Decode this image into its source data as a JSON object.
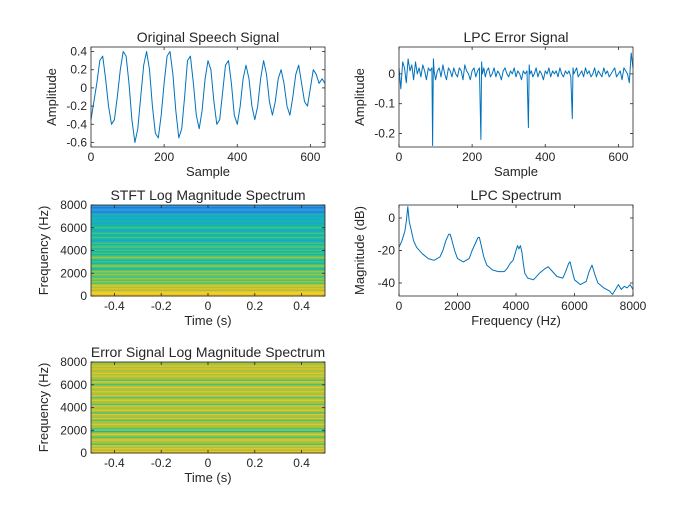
{
  "figure": {
    "background": "#ffffff",
    "axis_color": "#262626",
    "line_color": "#0072BD"
  },
  "chart_data": [
    {
      "id": "orig",
      "type": "line",
      "title": "Original Speech Signal",
      "xlabel": "Sample",
      "ylabel": "Amplitude",
      "xlim": [
        0,
        640
      ],
      "ylim": [
        -0.65,
        0.45
      ],
      "xticks": [
        0,
        200,
        400,
        600
      ],
      "xticklabels": [
        "0",
        "200",
        "400",
        "600"
      ],
      "yticks": [
        -0.6,
        -0.4,
        -0.2,
        0,
        0.2,
        0.4
      ],
      "yticklabels": [
        "-0.6",
        "-0.4",
        "-0.2",
        "0",
        "0.2",
        "0.4"
      ],
      "series": [
        {
          "x": [
            0,
            8,
            16,
            24,
            32,
            40,
            48,
            56,
            64,
            72,
            80,
            88,
            96,
            104,
            112,
            120,
            128,
            136,
            144,
            152,
            160,
            168,
            176,
            184,
            192,
            200,
            208,
            216,
            224,
            232,
            240,
            248,
            256,
            264,
            272,
            280,
            288,
            296,
            304,
            312,
            320,
            328,
            336,
            344,
            352,
            360,
            368,
            376,
            384,
            392,
            400,
            408,
            416,
            424,
            432,
            440,
            448,
            456,
            464,
            472,
            480,
            488,
            496,
            504,
            512,
            520,
            528,
            536,
            544,
            552,
            560,
            568,
            576,
            584,
            592,
            600,
            608,
            616,
            624,
            632,
            640
          ],
          "y": [
            -0.35,
            -0.15,
            0.05,
            0.3,
            0.35,
            0.1,
            -0.2,
            -0.4,
            -0.35,
            -0.1,
            0.2,
            0.4,
            0.35,
            0.05,
            -0.35,
            -0.6,
            -0.45,
            -0.1,
            0.25,
            0.4,
            0.2,
            -0.2,
            -0.5,
            -0.55,
            -0.3,
            0.05,
            0.35,
            0.4,
            0.15,
            -0.25,
            -0.55,
            -0.45,
            -0.1,
            0.3,
            0.35,
            0.05,
            -0.3,
            -0.45,
            -0.25,
            0.1,
            0.3,
            0.2,
            -0.15,
            -0.4,
            -0.35,
            -0.05,
            0.25,
            0.3,
            0.05,
            -0.3,
            -0.4,
            -0.2,
            0.1,
            0.25,
            0.1,
            -0.2,
            -0.35,
            -0.2,
            0.1,
            0.3,
            0.15,
            -0.15,
            -0.3,
            -0.15,
            0.1,
            0.2,
            0.05,
            -0.2,
            -0.3,
            -0.1,
            0.15,
            0.25,
            0.05,
            -0.15,
            -0.2,
            0.0,
            0.2,
            0.15,
            0.05,
            0.1,
            0.05
          ]
        }
      ]
    },
    {
      "id": "err",
      "type": "line",
      "title": "LPC Error Signal",
      "xlabel": "Sample",
      "ylabel": "Amplitude",
      "xlim": [
        0,
        640
      ],
      "ylim": [
        -0.245,
        0.09
      ],
      "xticks": [
        0,
        200,
        400,
        600
      ],
      "xticklabels": [
        "0",
        "200",
        "400",
        "600"
      ],
      "yticks": [
        -0.2,
        -0.1,
        0
      ],
      "yticklabels": [
        "-0.2",
        "-0.1",
        "0"
      ],
      "series": [
        {
          "x": [
            0,
            5,
            10,
            15,
            20,
            25,
            30,
            35,
            40,
            45,
            50,
            55,
            60,
            65,
            70,
            75,
            80,
            85,
            90,
            92,
            94,
            96,
            100,
            105,
            110,
            115,
            120,
            125,
            130,
            135,
            140,
            145,
            150,
            155,
            160,
            165,
            170,
            175,
            180,
            185,
            190,
            195,
            200,
            205,
            210,
            215,
            220,
            224,
            226,
            228,
            232,
            236,
            240,
            245,
            250,
            255,
            260,
            265,
            270,
            275,
            280,
            285,
            290,
            295,
            300,
            305,
            310,
            315,
            320,
            325,
            330,
            335,
            340,
            345,
            350,
            354,
            356,
            358,
            362,
            366,
            370,
            375,
            380,
            385,
            390,
            395,
            400,
            405,
            410,
            415,
            420,
            425,
            430,
            435,
            440,
            445,
            450,
            455,
            460,
            465,
            470,
            474,
            476,
            478,
            482,
            486,
            490,
            495,
            500,
            505,
            510,
            515,
            520,
            525,
            530,
            535,
            540,
            545,
            550,
            555,
            560,
            565,
            570,
            575,
            580,
            585,
            590,
            595,
            600,
            605,
            610,
            615,
            620,
            625,
            630,
            635,
            640
          ],
          "y": [
            0.02,
            -0.05,
            0.04,
            0.02,
            -0.03,
            0.05,
            0.01,
            0.03,
            -0.02,
            0.04,
            0.0,
            0.02,
            -0.01,
            0.03,
            0.01,
            -0.02,
            0.02,
            0.01,
            0.02,
            -0.24,
            0.05,
            0.01,
            -0.02,
            0.01,
            0.02,
            -0.01,
            0.03,
            0.0,
            -0.02,
            0.02,
            0.01,
            -0.01,
            0.02,
            0.0,
            -0.01,
            0.02,
            0.01,
            -0.02,
            0.03,
            0.01,
            0.0,
            -0.02,
            0.01,
            0.02,
            -0.01,
            0.01,
            0.02,
            -0.22,
            0.04,
            0.0,
            0.02,
            -0.01,
            0.01,
            0.02,
            -0.01,
            0.0,
            0.02,
            -0.01,
            0.01,
            0.0,
            -0.02,
            0.01,
            0.02,
            0.0,
            -0.01,
            0.01,
            0.0,
            0.02,
            -0.01,
            0.01,
            0.0,
            -0.02,
            0.01,
            0.0,
            0.01,
            -0.18,
            0.03,
            0.0,
            0.01,
            -0.01,
            0.0,
            0.02,
            -0.01,
            0.01,
            0.0,
            -0.02,
            0.01,
            0.0,
            0.02,
            -0.01,
            0.01,
            0.0,
            0.01,
            -0.01,
            0.02,
            0.0,
            -0.01,
            0.01,
            0.0,
            0.01,
            -0.01,
            -0.15,
            0.02,
            0.0,
            0.01,
            0.02,
            -0.01,
            0.0,
            0.01,
            -0.01,
            0.02,
            0.0,
            0.01,
            -0.01,
            0.0,
            0.02,
            -0.01,
            0.01,
            0.0,
            -0.01,
            0.02,
            0.0,
            0.01,
            -0.01,
            0.0,
            0.01,
            0.02,
            -0.01,
            0.0,
            0.01,
            -0.02,
            0.02,
            0.01,
            0.0,
            -0.03,
            0.07,
            0.02
          ]
        }
      ]
    },
    {
      "id": "stft",
      "type": "heatmap",
      "title": "STFT Log Magnitude Spectrum",
      "xlabel": "Time (s)",
      "ylabel": "Frequency (Hz)",
      "xlim": [
        -0.5,
        0.5
      ],
      "ylim": [
        0,
        8000
      ],
      "xticks": [
        -0.4,
        -0.2,
        0,
        0.2,
        0.4
      ],
      "xticklabels": [
        "-0.4",
        "-0.2",
        "0",
        "0.2",
        "0.4"
      ],
      "yticks": [
        0,
        2000,
        4000,
        6000,
        8000
      ],
      "yticklabels": [
        "0",
        "2000",
        "4000",
        "6000",
        "8000"
      ],
      "colormap": [
        "#3a6fe0",
        "#1ea2d8",
        "#14b8a8",
        "#48c27c",
        "#a3c43c",
        "#e6c22c",
        "#f9d424"
      ],
      "rows": [
        5,
        5,
        6,
        5,
        4,
        5,
        4,
        5,
        4,
        3,
        4,
        3,
        4,
        3,
        3,
        4,
        3,
        4,
        3,
        2,
        3,
        4,
        3,
        2,
        3,
        2,
        3,
        4,
        3,
        2,
        3,
        2,
        3,
        2,
        3,
        3,
        2,
        3,
        2,
        1,
        2,
        3,
        2,
        2,
        3,
        2,
        1,
        2,
        3,
        2,
        2,
        1,
        2,
        2,
        1,
        2,
        1,
        2,
        1,
        0,
        1,
        1,
        0,
        1
      ]
    },
    {
      "id": "lpcspec",
      "type": "line",
      "title": "LPC Spectrum",
      "xlabel": "Frequency (Hz)",
      "ylabel": "Magnitude (dB)",
      "xlim": [
        0,
        8000
      ],
      "ylim": [
        -48,
        8
      ],
      "xticks": [
        0,
        2000,
        4000,
        6000,
        8000
      ],
      "xticklabels": [
        "0",
        "2000",
        "4000",
        "6000",
        "8000"
      ],
      "yticks": [
        -40,
        -20,
        0
      ],
      "yticklabels": [
        "-40",
        "-20",
        "0"
      ],
      "series": [
        {
          "x": [
            0,
            100,
            200,
            250,
            300,
            350,
            400,
            500,
            600,
            800,
            1000,
            1200,
            1400,
            1500,
            1600,
            1700,
            1750,
            1800,
            1900,
            2000,
            2200,
            2400,
            2500,
            2600,
            2700,
            2750,
            2800,
            2900,
            3000,
            3200,
            3400,
            3600,
            3700,
            3800,
            3900,
            4000,
            4050,
            4100,
            4150,
            4200,
            4250,
            4300,
            4400,
            4600,
            4800,
            5000,
            5100,
            5200,
            5400,
            5600,
            5700,
            5800,
            5850,
            5900,
            6000,
            6200,
            6400,
            6500,
            6600,
            6700,
            6800,
            7000,
            7200,
            7300,
            7400,
            7500,
            7600,
            7700,
            7800,
            7900,
            8000
          ],
          "y": [
            -18,
            -14,
            -8,
            -2,
            7,
            -2,
            -6,
            -14,
            -18,
            -22,
            -25,
            -26,
            -24,
            -20,
            -14,
            -10,
            -10,
            -13,
            -20,
            -25,
            -27,
            -25,
            -20,
            -16,
            -12,
            -12,
            -16,
            -24,
            -29,
            -32,
            -33,
            -33,
            -31,
            -28,
            -26,
            -20,
            -17,
            -19,
            -17,
            -21,
            -28,
            -34,
            -37,
            -38,
            -34,
            -31,
            -30,
            -32,
            -36,
            -37,
            -33,
            -28,
            -27,
            -31,
            -38,
            -41,
            -39,
            -33,
            -29,
            -35,
            -40,
            -43,
            -45,
            -47,
            -44,
            -41,
            -44,
            -42,
            -43,
            -41,
            -44
          ]
        }
      ]
    },
    {
      "id": "errspec",
      "type": "heatmap",
      "title": "Error Signal Log Magnitude Spectrum",
      "xlabel": "Time (s)",
      "ylabel": "Frequency (Hz)",
      "xlim": [
        -0.5,
        0.5
      ],
      "ylim": [
        0,
        8000
      ],
      "xticks": [
        -0.4,
        -0.2,
        0,
        0.2,
        0.4
      ],
      "xticklabels": [
        "-0.4",
        "-0.2",
        "0",
        "0.2",
        "0.4"
      ],
      "yticks": [
        0,
        2000,
        4000,
        6000,
        8000
      ],
      "yticklabels": [
        "0",
        "2000",
        "4000",
        "6000",
        "8000"
      ],
      "colormap": [
        "#3a6fe0",
        "#1ea2d8",
        "#14b8a8",
        "#48c27c",
        "#a3c43c",
        "#e6c22c",
        "#f9d424"
      ],
      "rows": [
        5,
        5,
        4,
        5,
        4,
        5,
        3,
        4,
        4,
        5,
        4,
        3,
        4,
        5,
        4,
        2,
        4,
        3,
        4,
        4,
        5,
        4,
        4,
        3,
        5,
        4,
        4,
        5,
        3,
        4,
        5,
        4,
        4,
        5,
        3,
        4,
        4,
        5,
        4,
        3,
        5,
        4,
        4,
        5,
        4,
        4,
        5,
        4,
        3,
        4,
        5,
        3,
        4,
        4,
        5,
        4,
        5,
        4,
        4,
        5,
        4,
        5,
        4,
        4
      ]
    }
  ]
}
